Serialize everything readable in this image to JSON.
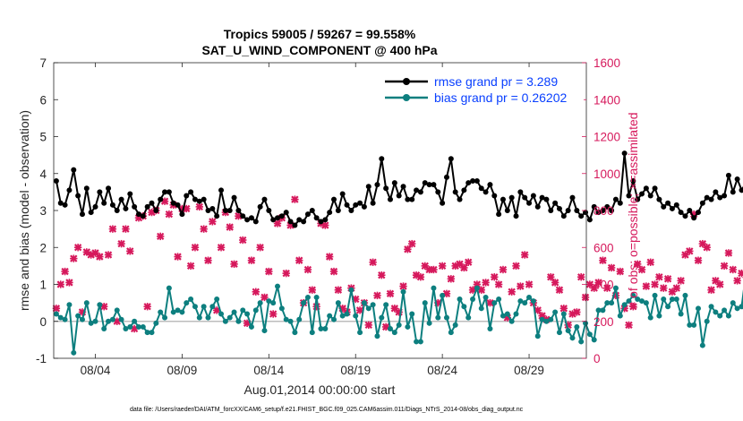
{
  "chart_data": {
    "type": "line",
    "title": "Tropics 59005 / 59267 = 99.558%",
    "subtitle": "SAT_U_WIND_COMPONENT @ 400 hPa",
    "xlabel": "Aug.01,2014 00:00:00 start",
    "ylabel": "rmse and bias (model - observation)",
    "y2label": "# of obs: o=possible; ×=assimilated",
    "xlim": [
      1.6,
      32.3
    ],
    "ylim": [
      -1,
      7
    ],
    "y2lim": [
      0,
      1600
    ],
    "x_ticks": [
      4,
      9,
      14,
      19,
      24,
      29
    ],
    "x_tick_labels": [
      "08/04",
      "08/09",
      "08/14",
      "08/19",
      "08/24",
      "08/29"
    ],
    "y_ticks": [
      -1,
      0,
      1,
      2,
      3,
      4,
      5,
      6,
      7
    ],
    "y_tick_labels": [
      "-1",
      "0",
      "1",
      "2",
      "3",
      "4",
      "5",
      "6",
      "7"
    ],
    "y2_ticks": [
      0,
      200,
      400,
      600,
      800,
      1000,
      1200,
      1400,
      1600
    ],
    "y2_tick_labels": [
      "0",
      "200",
      "400",
      "600",
      "800",
      "1000",
      "1200",
      "1400",
      "1600"
    ],
    "zero_line": 0,
    "legend_position": "top-right",
    "footnote": "data file: /Users/raeder/DAI/ATM_forcXX/CAM6_setup/f.e21.FHIST_BGC.f09_025.CAM6assim.011/Diags_NTrS_2014-08/obs_diag_output.nc",
    "series": [
      {
        "name": "rmse grand pr = 3.289",
        "axis": "left",
        "color": "#000000",
        "marker": "dot",
        "values": [
          3.8,
          3.2,
          3.15,
          3.55,
          4.1,
          3.4,
          2.9,
          3.6,
          2.95,
          3.1,
          3.5,
          3.2,
          3.6,
          3.15,
          3.0,
          3.3,
          3.05,
          3.45,
          3.1,
          2.9,
          2.85,
          3.1,
          3.2,
          3.0,
          3.3,
          3.5,
          3.5,
          3.2,
          3.15,
          2.9,
          3.4,
          3.5,
          3.3,
          3.25,
          3.3,
          3.0,
          3.05,
          2.85,
          3.55,
          3.0,
          3.0,
          3.35,
          3.0,
          2.85,
          2.75,
          2.8,
          2.7,
          3.1,
          3.3,
          3.0,
          2.75,
          2.8,
          2.85,
          2.95,
          2.7,
          2.6,
          2.75,
          2.7,
          2.9,
          3.0,
          2.8,
          2.7,
          2.75,
          2.95,
          3.3,
          3.0,
          3.45,
          3.15,
          3.0,
          3.15,
          3.2,
          3.1,
          3.65,
          3.2,
          3.7,
          4.4,
          3.6,
          3.3,
          3.75,
          3.4,
          3.65,
          3.3,
          3.3,
          3.55,
          3.5,
          3.75,
          3.7,
          3.7,
          3.5,
          3.2,
          3.9,
          4.4,
          3.5,
          3.3,
          3.55,
          3.75,
          3.8,
          3.8,
          3.6,
          3.5,
          3.7,
          3.4,
          2.9,
          3.3,
          3.0,
          3.35,
          2.85,
          3.5,
          3.35,
          3.2,
          3.4,
          3.1,
          3.35,
          3.3,
          3.0,
          3.2,
          3.05,
          2.85,
          3.0,
          3.35,
          3.0,
          2.85,
          2.95,
          2.75,
          3.1,
          2.95,
          3.0,
          3.1,
          3.0,
          3.3,
          3.2,
          4.55,
          3.4,
          3.8,
          3.3,
          3.45,
          3.6,
          3.4,
          3.6,
          3.3,
          3.1,
          3.2,
          3.05,
          3.15,
          2.95,
          2.85,
          3.0,
          2.8,
          2.95,
          3.2,
          3.35,
          3.3,
          3.5,
          3.35,
          3.4,
          3.95,
          3.5,
          3.85,
          3.55,
          3.75,
          3.15,
          3.3,
          3.6,
          3.7,
          3.55,
          3.8
        ]
      },
      {
        "name": "bias grand pr = 0.26202",
        "axis": "left",
        "color": "#0d7f7f",
        "marker": "dot",
        "values": [
          0.2,
          0.1,
          0.05,
          0.45,
          -0.85,
          0.15,
          0.05,
          0.5,
          -0.05,
          0.0,
          0.45,
          -0.2,
          0.0,
          0.05,
          0.3,
          0.05,
          -0.2,
          -0.15,
          0.0,
          -0.15,
          -0.15,
          -0.3,
          -0.3,
          -0.05,
          0.25,
          0.1,
          0.9,
          0.25,
          0.3,
          0.25,
          0.5,
          0.6,
          0.4,
          0.1,
          0.4,
          0.1,
          0.4,
          0.6,
          0.2,
          0.0,
          0.1,
          0.25,
          0.0,
          0.3,
          0.2,
          -0.15,
          0.3,
          0.5,
          -0.25,
          0.55,
          0.5,
          0.95,
          0.35,
          0.05,
          0.0,
          -0.3,
          0.05,
          0.5,
          0.65,
          -0.3,
          0.65,
          -0.2,
          -0.2,
          0.15,
          0.05,
          0.5,
          0.15,
          0.2,
          0.85,
          0.15,
          -0.3,
          0.5,
          0.35,
          0.45,
          -0.4,
          0.1,
          0.45,
          -0.2,
          -0.3,
          -0.1,
          0.8,
          -0.15,
          0.2,
          -0.55,
          -0.55,
          0.5,
          -0.05,
          0.9,
          0.1,
          0.7,
          0.1,
          -0.3,
          -0.1,
          0.6,
          0.4,
          0.1,
          0.6,
          0.9,
          0.35,
          0.65,
          -0.2,
          0.5,
          0.6,
          0.15,
          0.2,
          0.0,
          0.2,
          0.55,
          0.5,
          0.65,
          0.55,
          -0.4,
          0.05,
          0.0,
          0.05,
          0.25,
          -0.3,
          0.2,
          -0.25,
          -0.45,
          -0.15,
          -0.55,
          -0.05,
          -0.35,
          -0.5,
          0.3,
          0.3,
          0.5,
          0.5,
          0.9,
          0.15,
          0.45,
          0.55,
          0.7,
          0.6,
          0.55,
          0.5,
          0.1,
          0.7,
          0.15,
          0.6,
          0.4,
          0.6,
          0.6,
          0.2,
          0.7,
          -0.1,
          -0.1,
          0.35,
          -0.65,
          0.0,
          0.4,
          0.25,
          0.15,
          0.3,
          0.15,
          0.5,
          0.35,
          0.4,
          1.3,
          0.55,
          0.35,
          1.3,
          1.2,
          1.35,
          0.75,
          1.35,
          1.2,
          0.65
        ]
      },
      {
        "name": "# of obs assimilated",
        "axis": "right",
        "color": "#d6195c",
        "marker": "x",
        "values": [
          270,
          400,
          470,
          410,
          540,
          600,
          250,
          575,
          560,
          570,
          550,
          280,
          560,
          700,
          200,
          620,
          700,
          580,
          160,
          760,
          770,
          280,
          790,
          800,
          660,
          850,
          780,
          830,
          550,
          810,
          810,
          500,
          600,
          820,
          700,
          530,
          740,
          260,
          600,
          790,
          710,
          510,
          770,
          640,
          190,
          530,
          360,
          600,
          330,
          470,
          240,
          730,
          760,
          460,
          720,
          860,
          530,
          300,
          480,
          370,
          280,
          730,
          720,
          550,
          470,
          370,
          270,
          250,
          380,
          320,
          260,
          300,
          180,
          520,
          340,
          450,
          170,
          350,
          270,
          250,
          390,
          590,
          620,
          450,
          440,
          500,
          480,
          480,
          300,
          500,
          350,
          430,
          500,
          510,
          490,
          520,
          370,
          400,
          370,
          410,
          300,
          440,
          400,
          480,
          220,
          360,
          500,
          390,
          560,
          400,
          300,
          260,
          230,
          210,
          440,
          410,
          370,
          270,
          180,
          240,
          250,
          440,
          330,
          400,
          380,
          410,
          530,
          380,
          490,
          340,
          470,
          270,
          180,
          280,
          510,
          480,
          390,
          520,
          400,
          440,
          380,
          430,
          360,
          380,
          420,
          560,
          580,
          780,
          530,
          620,
          600,
          370,
          420,
          400,
          500,
          570,
          480,
          420,
          460,
          450,
          550,
          520,
          540,
          500,
          300,
          450,
          560,
          600,
          580,
          520,
          400,
          0
        ]
      }
    ]
  }
}
